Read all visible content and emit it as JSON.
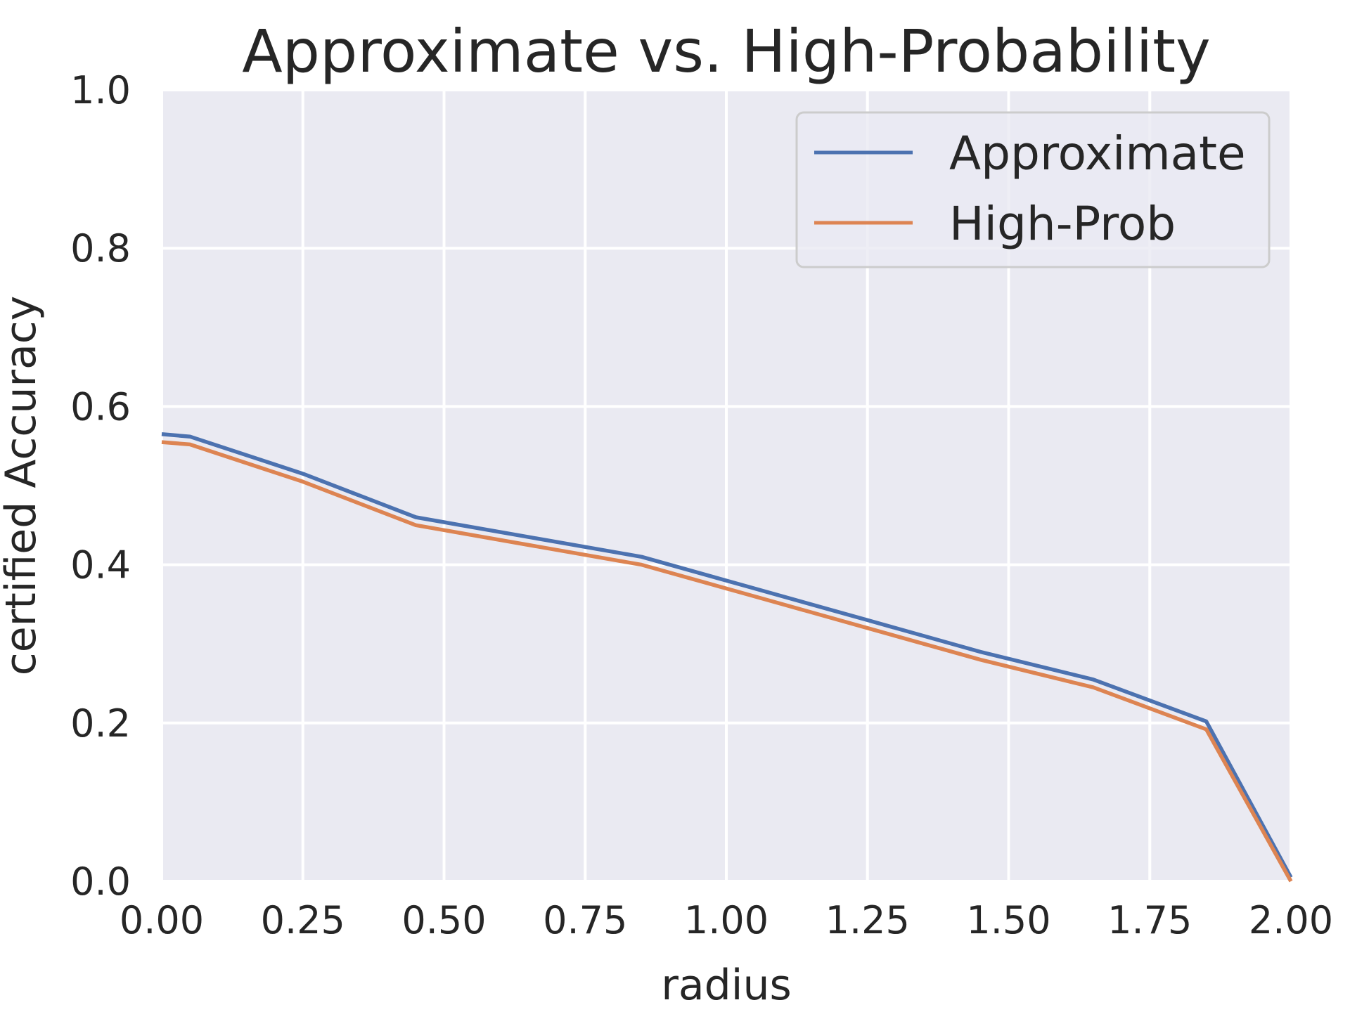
{
  "chart_data": {
    "type": "line",
    "title": "Approximate vs. High-Probability",
    "xlabel": "radius",
    "ylabel": "certified Accuracy",
    "xlim": [
      0,
      2
    ],
    "ylim": [
      0,
      1
    ],
    "x_ticks": [
      "0.00",
      "0.25",
      "0.50",
      "0.75",
      "1.00",
      "1.25",
      "1.50",
      "1.75",
      "2.00"
    ],
    "x_tick_values": [
      0,
      0.25,
      0.5,
      0.75,
      1.0,
      1.25,
      1.5,
      1.75,
      2.0
    ],
    "y_ticks": [
      "0.0",
      "0.2",
      "0.4",
      "0.6",
      "0.8",
      "1.0"
    ],
    "y_tick_values": [
      0,
      0.2,
      0.4,
      0.6,
      0.8,
      1.0
    ],
    "grid": true,
    "legend_position": "top-right",
    "series": [
      {
        "name": "Approximate",
        "color": "#4c72b0",
        "x": [
          0.0,
          0.05,
          0.25,
          0.45,
          0.65,
          0.85,
          1.05,
          1.25,
          1.45,
          1.65,
          1.85,
          2.0
        ],
        "y": [
          0.565,
          0.562,
          0.515,
          0.46,
          0.435,
          0.41,
          0.37,
          0.33,
          0.29,
          0.255,
          0.202,
          0.005
        ]
      },
      {
        "name": "High-Prob",
        "color": "#dd8452",
        "x": [
          0.0,
          0.05,
          0.25,
          0.45,
          0.65,
          0.85,
          1.05,
          1.25,
          1.45,
          1.65,
          1.85,
          2.0
        ],
        "y": [
          0.555,
          0.552,
          0.505,
          0.45,
          0.425,
          0.4,
          0.36,
          0.32,
          0.28,
          0.245,
          0.192,
          0.0
        ]
      }
    ]
  }
}
